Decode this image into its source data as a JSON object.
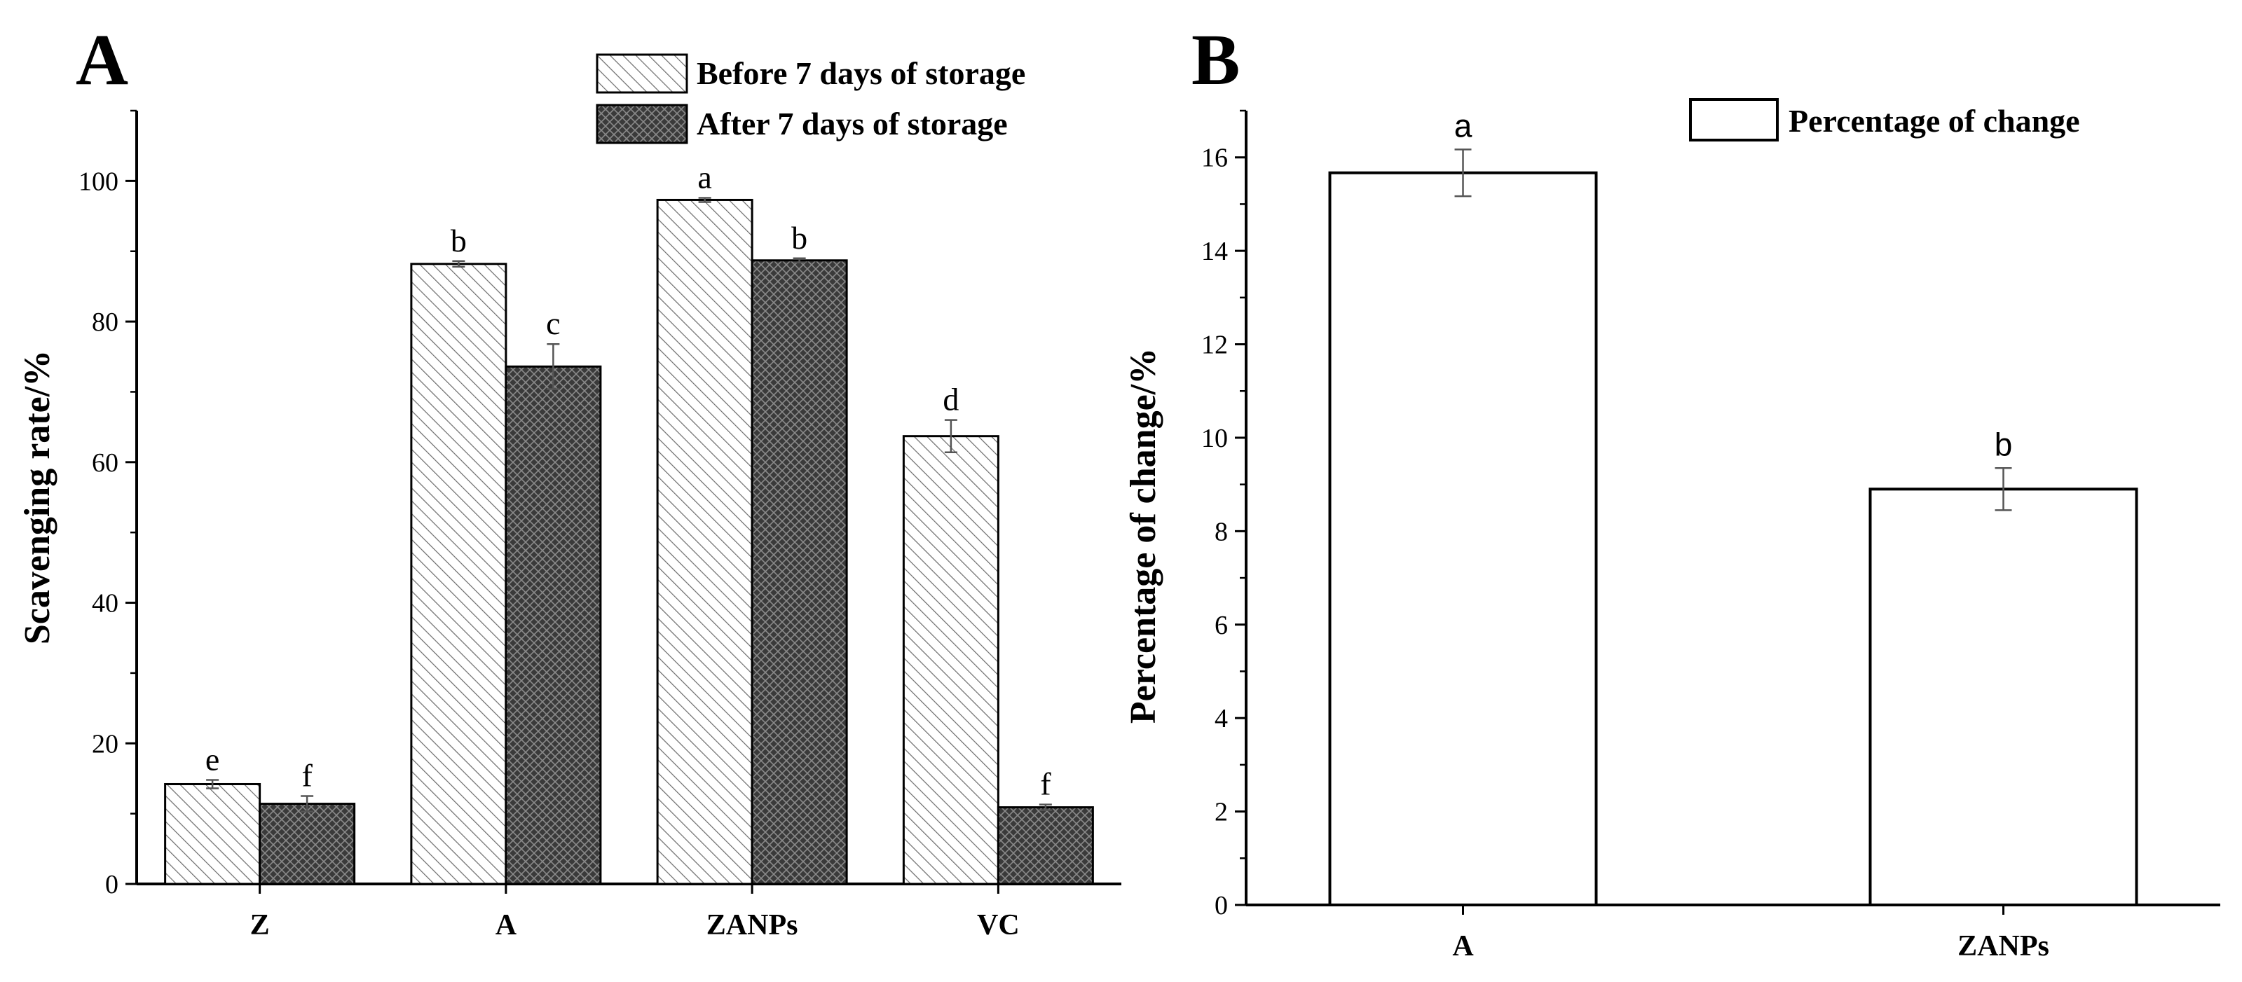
{
  "chart_data": [
    {
      "panel": "A",
      "type": "bar",
      "ylabel": "Scavenging rate/%",
      "ylim": [
        0,
        110
      ],
      "yticks": [
        0,
        20,
        40,
        60,
        80,
        100
      ],
      "categories": [
        "Z",
        "A",
        "ZANPs",
        "VC"
      ],
      "series": [
        {
          "name": "Before 7 days of storage",
          "pattern": "diagonal-hatch",
          "color": "#ffffff",
          "values": [
            14.2,
            88.2,
            97.3,
            63.7
          ],
          "errors": [
            0.6,
            0.4,
            0.3,
            2.3
          ],
          "letters": [
            "e",
            "b",
            "a",
            "d"
          ]
        },
        {
          "name": "After 7 days of storage",
          "pattern": "dark-crosshatch",
          "color": "#3a3a3a",
          "values": [
            11.4,
            73.6,
            88.7,
            10.9
          ],
          "errors": [
            1.1,
            3.2,
            0.3,
            0.4
          ],
          "letters": [
            "f",
            "c",
            "b",
            "f"
          ]
        }
      ],
      "legend_position": "top-right",
      "grid": false
    },
    {
      "panel": "B",
      "type": "bar",
      "ylabel": "Percentage of change/%",
      "ylim": [
        0,
        17
      ],
      "yticks": [
        0,
        2,
        4,
        6,
        8,
        10,
        12,
        14,
        16
      ],
      "categories": [
        "A",
        "ZANPs"
      ],
      "series": [
        {
          "name": "Percentage of change",
          "color": "#ffffff",
          "values": [
            15.67,
            8.9
          ],
          "errors": [
            0.5,
            0.45
          ],
          "letters": [
            "a",
            "b"
          ]
        }
      ],
      "legend_position": "top-right",
      "grid": false
    }
  ]
}
